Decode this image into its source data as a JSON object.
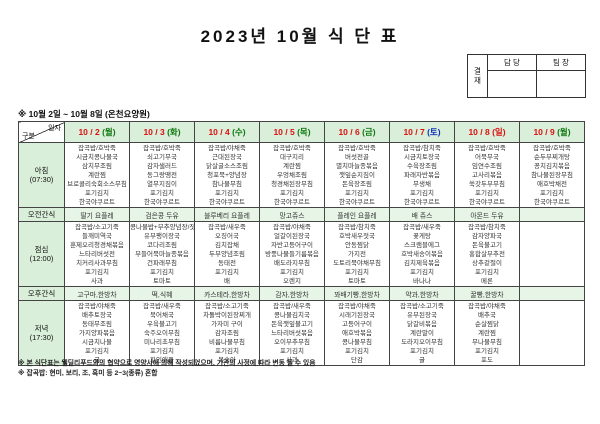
{
  "title": "2023년  10월  식  단  표",
  "period_note": "※  10월 2일 ~ 10월 8일  (온천요양원)",
  "approval": {
    "stamp_label": "결재",
    "columns": [
      "담 당",
      "팀 장"
    ]
  },
  "corner": {
    "top_label": "일자",
    "bottom_label": "구분"
  },
  "colors": {
    "header_bg": "#d9efd9",
    "snack_bg": "#e7f5e7",
    "date_red": "#dd1111",
    "weekday_green": "#117711",
    "saturday_blue": "#1133bb",
    "sunday_red": "#dd1111"
  },
  "columns": [
    {
      "date": "10 / 2",
      "day": "월",
      "day_color": "#117711"
    },
    {
      "date": "10 / 3",
      "day": "화",
      "day_color": "#117711"
    },
    {
      "date": "10 / 4",
      "day": "수",
      "day_color": "#117711"
    },
    {
      "date": "10 / 5",
      "day": "목",
      "day_color": "#117711"
    },
    {
      "date": "10 / 6",
      "day": "금",
      "day_color": "#117711"
    },
    {
      "date": "10 / 7",
      "day": "토",
      "day_color": "#1133bb"
    },
    {
      "date": "10 / 8",
      "day": "일",
      "day_color": "#dd1111"
    },
    {
      "date": "10 / 9",
      "day": "월",
      "day_color": "#117711"
    }
  ],
  "rows": [
    {
      "label": "아침",
      "time": "(07:30)",
      "type": "meal",
      "cells": [
        [
          "잡곡밥/호박죽",
          "시금치콩나물국",
          "삼치무조림",
          "계란찜",
          "브로콜리숙회소스무침",
          "포기김치",
          "한국야쿠르트"
        ],
        [
          "잡곡밥/호박죽",
          "쇠고기무국",
          "감자샐러드",
          "동그랑땡전",
          "열무지짐이",
          "포기김치",
          "한국야쿠르트"
        ],
        [
          "잡곡밥/야채죽",
          "근대된장국",
          "닭살굴소스조림",
          "청포묵+양념장",
          "참나물무침",
          "포기김치",
          "한국야쿠르트"
        ],
        [
          "잡곡밥/호박죽",
          "대구지리",
          "계란찜",
          "우엉채조림",
          "청경채된장무침",
          "포기김치",
          "한국야쿠르트"
        ],
        [
          "잡곡밥/호박죽",
          "버섯전골",
          "멸치마늘종볶음",
          "깻잎순지짐이",
          "돈육장조림",
          "포기김치",
          "한국야쿠르트"
        ],
        [
          "잡곡밥/참치죽",
          "시금치토장국",
          "수육장조림",
          "파래자반볶음",
          "무생채",
          "포기김치",
          "한국야쿠르트"
        ],
        [
          "잡곡밥/호박죽",
          "어묵무국",
          "임연수조림",
          "고사리볶음",
          "쑥갓두부무침",
          "포기김치",
          "한국야쿠르트"
        ],
        [
          "잡곡밥/호박죽",
          "순두부찌개탕",
          "꽁치김치볶음",
          "참나물된장무침",
          "애호박채전",
          "포기김치",
          "한국야쿠르트"
        ]
      ]
    },
    {
      "label": "오전간식",
      "time": "",
      "type": "snack",
      "cells": [
        "딸기 요플레",
        "검은콩 두유",
        "블루베리 요플레",
        "망고쥬스",
        "플레인 요플레",
        "배 쥬스",
        "아몬드 두유",
        ""
      ]
    },
    {
      "label": "점심",
      "time": "(12:00)",
      "type": "meal",
      "cells": [
        [
          "잡곡밥/소고기죽",
          "들깨미역국",
          "훈제오리청경채볶음",
          "느타리버섯전",
          "치커리사과무침",
          "포기김치",
          "사과"
        ],
        [
          "콩나물밥+부추양념장/잣죽",
          "유부팽이장국",
          "코다리조림",
          "부들어묵마늘종볶음",
          "건파래무침",
          "포기김치",
          "토마토"
        ],
        [
          "잡곡밥/새우죽",
          "오징어국",
          "김치잡채",
          "두부양념조림",
          "동태전",
          "포기김치",
          "배"
        ],
        [
          "잡곡밥/야채죽",
          "얼갈이된장국",
          "자반고등어구이",
          "방풍나물들기름볶음",
          "배도라지무침",
          "포기김치",
          "오렌지"
        ],
        [
          "잡곡밥/참치죽",
          "호박새우젓국",
          "안동찜닭",
          "가지전",
          "도토리묵야채무침",
          "포기김치",
          "토마토"
        ],
        [
          "잡곡밥/새우죽",
          "꽃게탕",
          "스크램블에그",
          "호박새송이볶음",
          "김치제육볶음",
          "포기김치",
          "바나나"
        ],
        [
          "잡곡밥/참치죽",
          "감자양파국",
          "돈육불고기",
          "홍합살부추전",
          "상추겉절이",
          "포기김치",
          "메론"
        ],
        [
          "",
          "",
          "",
          "",
          "",
          "",
          ""
        ]
      ]
    },
    {
      "label": "오후간식",
      "time": "",
      "type": "snack",
      "cells": [
        "고구마,한방차",
        "떡,식혜",
        "카스테라,한방차",
        "감자,한방차",
        "꽈배기빵,한방차",
        "약과,한방차",
        "꿀빵,한방차",
        ""
      ]
    },
    {
      "label": "저녁",
      "time": "(17:30)",
      "type": "meal",
      "cells": [
        [
          "잡곡밥/야채죽",
          "배추토장국",
          "동태무조림",
          "가지양파볶음",
          "시금치나물",
          "포기김치",
          "귤"
        ],
        [
          "잡곡밥/새우죽",
          "북어채국",
          "우육불고기",
          "숙주오이무침",
          "미나리초무침",
          "포기김치",
          "파인애플"
        ],
        [
          "잡곡밥/소고기죽",
          "차돌박이된장찌개",
          "가자미 구이",
          "감자조림",
          "비름나물무침",
          "포기김치",
          "복숭아"
        ],
        [
          "잡곡밥/새우죽",
          "콩나물김치국",
          "돈육깻잎불고기",
          "느타리버섯볶음",
          "오이부추무침",
          "포기김치",
          "사과"
        ],
        [
          "잡곡밥/야채죽",
          "시래기된장국",
          "고등어구이",
          "애호박볶음",
          "콩나물무침",
          "포기김치",
          "단감"
        ],
        [
          "잡곡밥/소고기죽",
          "유부된장국",
          "닭갈비볶음",
          "계란말이",
          "도라지오이무침",
          "포기김치",
          "귤"
        ],
        [
          "잡곡밥/야채죽",
          "배추국",
          "순살찜닭",
          "계란찜",
          "무나물무침",
          "포기김치",
          "포도"
        ],
        [
          "",
          "",
          "",
          "",
          "",
          "",
          ""
        ]
      ]
    }
  ],
  "footnotes": [
    "※ 본 식단표는 웰딜리푸드와의 협약으로 영양사에 의해 작성되었으며, 기관의 사정에 따라 변동 될 수 있음",
    "※ 잡곡밥: 현미, 보리, 조, 흑미 등 2~3(종류) 혼합"
  ]
}
